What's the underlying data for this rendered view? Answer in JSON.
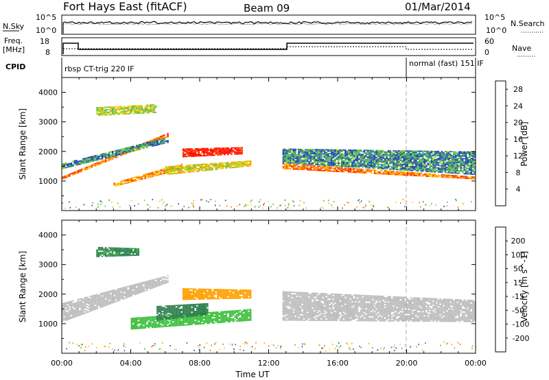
{
  "header": {
    "station": "Fort Hays East (fitACF)",
    "beam": "Beam 09",
    "date": "01/Mar/2014"
  },
  "noise_panel": {
    "left_label": "N.Sky",
    "right_label": "N.Search",
    "left_ticks": [
      "10^5",
      "10^0"
    ],
    "right_ticks": [
      "10^5",
      "10^0"
    ]
  },
  "freq_panel": {
    "left_label_line1": "Freq.",
    "left_label_line2": "[MHz]",
    "right_label": "Nave",
    "left_ticks": [
      "18",
      "8"
    ],
    "right_ticks": [
      "60",
      "0"
    ]
  },
  "cpid_panel": {
    "label": "CPID",
    "program_1": "rbsp CT-trig 220 IF",
    "program_2": "normal (fast) 151 IF"
  },
  "colors": {
    "power": [
      "#0000ff",
      "#2040c0",
      "#3a8070",
      "#49c060",
      "#a0d020",
      "#ffd000",
      "#ffa000",
      "#ff7000",
      "#ff3000",
      "#ff0000"
    ],
    "velocity": [
      "#0000ff",
      "#3050a0",
      "#2f8050",
      "#40c040",
      "#80e040",
      "#bebebe",
      "#ffd000",
      "#ffa000",
      "#ff7000",
      "#ff3000",
      "#ff0000"
    ],
    "ground_scatter": "#bebebe"
  },
  "chart_data": [
    {
      "type": "heatmap",
      "name": "power",
      "ylabel": "Slant Range [km]",
      "y_ticks": [
        "1000",
        "2000",
        "3000",
        "4000"
      ],
      "ylim": [
        0,
        4500
      ],
      "xlim": [
        0,
        24
      ],
      "colorbar_label": "Power [dB]",
      "colorbar_ticks": [
        "4",
        "8",
        "12",
        "16",
        "20",
        "24",
        "28"
      ],
      "colorbar_range": [
        0,
        30
      ],
      "regions": [
        {
          "t": [
            0.0,
            6.2
          ],
          "r_start": [
            1050,
            2500
          ],
          "r_end": [
            1150,
            2650
          ],
          "value": 22
        },
        {
          "t": [
            0.0,
            6.2
          ],
          "r_start": [
            1400,
            2300
          ],
          "r_end": [
            1600,
            2500
          ],
          "value": 8
        },
        {
          "t": [
            2.0,
            5.5
          ],
          "r_start": [
            3200,
            3300
          ],
          "r_end": [
            3500,
            3600
          ],
          "value": 14
        },
        {
          "t": [
            3.0,
            7.0
          ],
          "r_start": [
            800,
            1400
          ],
          "r_end": [
            950,
            1600
          ],
          "value": 20
        },
        {
          "t": [
            7.0,
            10.5
          ],
          "r_start": [
            1800,
            1900
          ],
          "r_end": [
            2100,
            2150
          ],
          "value": 28
        },
        {
          "t": [
            6.0,
            11.0
          ],
          "r_start": [
            1200,
            1500
          ],
          "r_end": [
            1500,
            1700
          ],
          "value": 16
        },
        {
          "t": [
            12.8,
            24.0
          ],
          "r_start": [
            1400,
            1050
          ],
          "r_end": [
            1600,
            1150
          ],
          "value": 22
        },
        {
          "t": [
            12.8,
            24.0
          ],
          "r_start": [
            1600,
            1200
          ],
          "r_end": [
            2100,
            2000
          ],
          "value": 8
        }
      ]
    },
    {
      "type": "heatmap",
      "name": "velocity",
      "xlabel": "Time UT",
      "ylabel": "Slant Range [km]",
      "y_ticks": [
        "1000",
        "2000",
        "3000",
        "4000"
      ],
      "x_ticks": [
        "00:00",
        "04:00",
        "08:00",
        "12:00",
        "16:00",
        "20:00",
        "00:00"
      ],
      "ylim": [
        0,
        4500
      ],
      "xlim": [
        0,
        24
      ],
      "colorbar_label": "Velocity [m s^-1]",
      "colorbar_ticks": [
        "200",
        "100",
        "50",
        "15",
        "-15",
        "-50",
        "-100",
        "-200"
      ],
      "regions": [
        {
          "t": [
            0.0,
            6.2
          ],
          "r_start": [
            1050,
            2400
          ],
          "r_end": [
            1700,
            2650
          ],
          "value": 0
        },
        {
          "t": [
            2.0,
            4.5
          ],
          "r_start": [
            3250,
            3300
          ],
          "r_end": [
            3600,
            3550
          ],
          "value": 60
        },
        {
          "t": [
            4.0,
            11.0
          ],
          "r_start": [
            800,
            1100
          ],
          "r_end": [
            1200,
            1500
          ],
          "value": 30
        },
        {
          "t": [
            5.5,
            8.5
          ],
          "r_start": [
            1100,
            1300
          ],
          "r_end": [
            1600,
            1700
          ],
          "value": 80
        },
        {
          "t": [
            7.0,
            11.0
          ],
          "r_start": [
            1800,
            1850
          ],
          "r_end": [
            2200,
            2150
          ],
          "value": -80
        },
        {
          "t": [
            12.8,
            24.0
          ],
          "r_start": [
            1100,
            1050
          ],
          "r_end": [
            2100,
            1800
          ],
          "value": 0
        }
      ]
    }
  ]
}
